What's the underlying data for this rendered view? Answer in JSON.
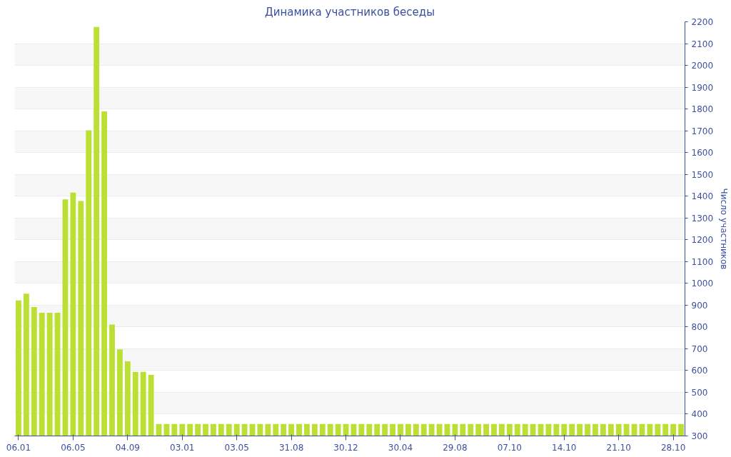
{
  "chart_data": {
    "type": "bar",
    "title": "Динамика участников беседы",
    "ylabel": "Число участников",
    "categories": [
      "06.01",
      null,
      null,
      null,
      null,
      null,
      null,
      "06.05",
      null,
      null,
      null,
      null,
      null,
      null,
      "04.09",
      null,
      null,
      null,
      null,
      null,
      null,
      "03.01",
      null,
      null,
      null,
      null,
      null,
      null,
      "03.05",
      null,
      null,
      null,
      null,
      null,
      null,
      "31.08",
      null,
      null,
      null,
      null,
      null,
      null,
      "30.12",
      null,
      null,
      null,
      null,
      null,
      null,
      "30.04",
      null,
      null,
      null,
      null,
      null,
      null,
      "29.08",
      null,
      null,
      null,
      null,
      null,
      null,
      "07.10",
      null,
      null,
      null,
      null,
      null,
      null,
      "14.10",
      null,
      null,
      null,
      null,
      null,
      null,
      "21.10",
      null,
      null,
      null,
      null,
      null,
      null,
      "28.10",
      null
    ],
    "values": [
      922,
      953,
      891,
      865,
      865,
      865,
      1385,
      1416,
      1378,
      1702,
      2176,
      1789,
      811,
      697,
      642,
      594,
      594,
      580,
      355,
      355,
      355,
      355,
      355,
      355,
      355,
      355,
      355,
      355,
      355,
      355,
      355,
      355,
      355,
      355,
      355,
      355,
      355,
      355,
      355,
      355,
      355,
      355,
      355,
      355,
      355,
      355,
      355,
      355,
      355,
      355,
      355,
      355,
      355,
      355,
      355,
      355,
      355,
      355,
      355,
      355,
      355,
      355,
      355,
      355,
      355,
      355,
      355,
      355,
      355,
      355,
      355,
      355,
      355,
      355,
      355,
      355,
      355,
      355,
      355,
      355,
      355,
      355,
      355,
      355,
      355,
      355
    ],
    "color": "#bbe033",
    "ylim": [
      300,
      2200
    ],
    "yticks": [
      300,
      400,
      500,
      600,
      700,
      800,
      900,
      1000,
      1100,
      1200,
      1300,
      1400,
      1500,
      1600,
      1700,
      1800,
      1900,
      2000,
      2100,
      2200
    ],
    "grid": "y"
  }
}
